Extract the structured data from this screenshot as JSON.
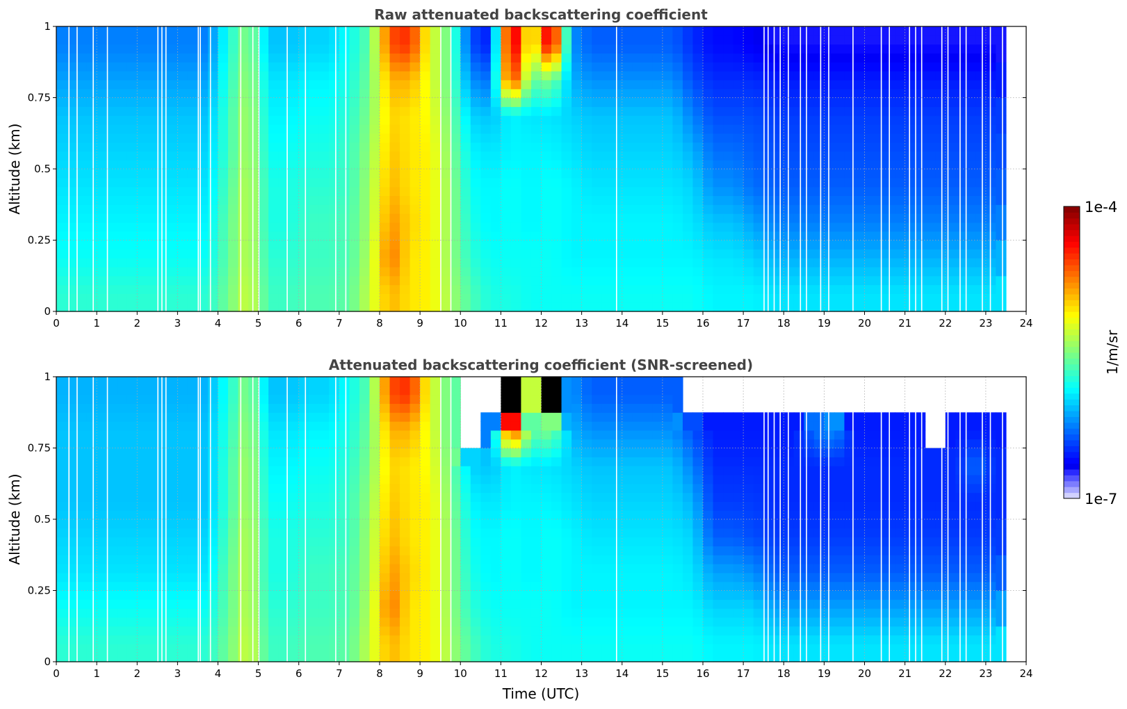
{
  "colorbar": {
    "label": "1/m/sr",
    "max_label": "1e-4",
    "min_label": "1e-7",
    "log10_range": [
      -7,
      -4
    ],
    "colormap": "jet",
    "over_color": "#000000",
    "missing_color": "#ffffff"
  },
  "shared": {
    "xlabel": "Time (UTC)",
    "ylabel": "Altitude (km)",
    "xticks": [
      "0",
      "1",
      "2",
      "3",
      "4",
      "5",
      "6",
      "7",
      "8",
      "9",
      "10",
      "11",
      "12",
      "13",
      "14",
      "15",
      "16",
      "17",
      "18",
      "19",
      "20",
      "21",
      "22",
      "23",
      "24"
    ],
    "yticks": [
      "0",
      "0.25",
      "0.5",
      "0.75",
      "1"
    ],
    "xlim": [
      0,
      24
    ],
    "ylim": [
      0,
      1
    ],
    "grid": true
  },
  "chart_data": [
    {
      "type": "heatmap",
      "title": "Raw attenuated backscattering coefficient",
      "xlabel": "",
      "ylabel": "Altitude (km)",
      "value_units": "log10(1/m/sr)",
      "time_bin_hours": 0.5,
      "altitude_bin_km": 0.125,
      "gaps_utc": [
        0.3,
        0.5,
        0.9,
        1.25,
        2.5,
        2.6,
        2.7,
        3.5,
        3.55,
        3.8,
        4.55,
        4.85,
        5.0,
        5.7,
        6.15,
        6.9,
        7.15,
        9.5,
        9.75,
        13.85,
        17.5,
        17.6,
        17.75,
        17.9,
        18.1,
        18.4,
        18.55,
        18.9,
        19.1,
        19.7,
        20.4,
        20.6,
        21.1,
        21.25,
        21.4,
        21.9,
        22.05,
        22.35,
        22.5,
        22.9,
        23.1,
        23.4
      ],
      "columns_bottom_to_top": [
        [
          -5.75,
          -5.85,
          -5.9,
          -5.95,
          -6.0,
          -6.05,
          -6.15,
          -6.25
        ],
        [
          -5.75,
          -5.85,
          -5.9,
          -5.95,
          -6.0,
          -6.05,
          -6.15,
          -6.25
        ],
        [
          -5.75,
          -5.85,
          -5.9,
          -5.95,
          -6.0,
          -6.05,
          -6.15,
          -6.25
        ],
        [
          -5.75,
          -5.85,
          -5.9,
          -5.95,
          -6.0,
          -6.05,
          -6.15,
          -6.25
        ],
        [
          -5.75,
          -5.85,
          -5.9,
          -5.95,
          -6.0,
          -6.05,
          -6.15,
          -6.25
        ],
        [
          -5.75,
          -5.85,
          -5.9,
          -5.95,
          -6.0,
          -6.05,
          -6.15,
          -6.25
        ],
        [
          -5.75,
          -5.85,
          -5.9,
          -5.95,
          -6.0,
          -6.05,
          -6.15,
          -6.25
        ],
        [
          -5.75,
          -5.85,
          -5.9,
          -5.95,
          -6.0,
          -6.05,
          -6.15,
          -6.25
        ],
        [
          -5.55,
          -5.6,
          -5.6,
          -5.65,
          -5.7,
          -5.7,
          -5.75,
          -5.8
        ],
        [
          -5.25,
          -5.3,
          -5.3,
          -5.3,
          -5.35,
          -5.35,
          -5.4,
          -5.45
        ],
        [
          -5.7,
          -5.75,
          -5.8,
          -5.8,
          -5.85,
          -5.9,
          -5.95,
          -6.05
        ],
        [
          -5.7,
          -5.75,
          -5.8,
          -5.8,
          -5.85,
          -5.9,
          -5.95,
          -6.05
        ],
        [
          -5.65,
          -5.7,
          -5.7,
          -5.75,
          -5.8,
          -5.85,
          -5.9,
          -6.0
        ],
        [
          -5.65,
          -5.7,
          -5.7,
          -5.75,
          -5.8,
          -5.85,
          -5.9,
          -6.0
        ],
        [
          -5.6,
          -5.65,
          -5.65,
          -5.7,
          -5.7,
          -5.75,
          -5.8,
          -5.85
        ],
        [
          -5.3,
          -5.35,
          -5.4,
          -5.4,
          -5.45,
          -5.5,
          -5.55,
          -5.6
        ],
        [
          -4.9,
          -4.7,
          -4.8,
          -4.9,
          -4.95,
          -5.0,
          -4.9,
          -4.6
        ],
        [
          -5.05,
          -5.05,
          -5.0,
          -5.05,
          -5.05,
          -5.05,
          -4.9,
          -4.5
        ],
        [
          -5.1,
          -5.1,
          -5.1,
          -5.1,
          -5.1,
          -5.15,
          -5.2,
          -5.2
        ],
        [
          -5.4,
          -5.45,
          -5.45,
          -5.45,
          -5.5,
          -5.55,
          -5.6,
          -5.6
        ],
        [
          -5.65,
          -5.75,
          -5.8,
          -5.85,
          -5.9,
          -6.0,
          -6.2,
          -6.4
        ],
        [
          -5.8,
          -5.85,
          -5.9,
          -5.9,
          -5.95,
          -6.05,
          -6.3,
          -6.55
        ],
        [
          -5.8,
          -5.85,
          -5.85,
          -5.85,
          -5.9,
          -5.9,
          -4.4,
          -4.1
        ],
        [
          -5.85,
          -5.85,
          -5.9,
          -5.9,
          -5.9,
          -5.95,
          -5.6,
          -5.3
        ],
        [
          -5.85,
          -5.85,
          -5.85,
          -5.85,
          -5.9,
          -5.95,
          -5.5,
          -4.15
        ],
        [
          -5.85,
          -5.9,
          -5.9,
          -5.9,
          -5.95,
          -6.0,
          -6.1,
          -6.2
        ],
        [
          -5.85,
          -5.9,
          -5.9,
          -5.95,
          -6.0,
          -6.05,
          -6.2,
          -6.35
        ],
        [
          -5.85,
          -5.9,
          -5.9,
          -5.95,
          -6.0,
          -6.05,
          -6.2,
          -6.35
        ],
        [
          -5.85,
          -5.9,
          -5.9,
          -5.95,
          -6.0,
          -6.05,
          -6.2,
          -6.35
        ],
        [
          -5.85,
          -5.9,
          -5.9,
          -5.95,
          -6.0,
          -6.05,
          -6.2,
          -6.35
        ],
        [
          -5.85,
          -5.9,
          -5.9,
          -5.95,
          -6.0,
          -6.05,
          -6.2,
          -6.35
        ],
        [
          -5.85,
          -5.9,
          -5.95,
          -6.0,
          -6.1,
          -6.25,
          -6.4,
          -6.5
        ],
        [
          -5.9,
          -5.95,
          -6.05,
          -6.2,
          -6.3,
          -6.4,
          -6.5,
          -6.6
        ],
        [
          -5.9,
          -5.95,
          -6.05,
          -6.2,
          -6.3,
          -6.4,
          -6.5,
          -6.6
        ],
        [
          -5.9,
          -6.0,
          -6.15,
          -6.3,
          -6.35,
          -6.4,
          -6.5,
          -6.65
        ],
        [
          -5.95,
          -6.1,
          -6.25,
          -6.35,
          -6.4,
          -6.45,
          -6.55,
          -6.7
        ],
        [
          -5.95,
          -6.1,
          -6.25,
          -6.35,
          -6.4,
          -6.45,
          -6.55,
          -6.7
        ],
        [
          -5.95,
          -6.1,
          -6.25,
          -6.35,
          -6.4,
          -6.45,
          -6.55,
          -6.7
        ],
        [
          -5.95,
          -6.1,
          -6.25,
          -6.35,
          -6.4,
          -6.45,
          -6.55,
          -6.7
        ],
        [
          -5.95,
          -6.1,
          -6.25,
          -6.35,
          -6.4,
          -6.45,
          -6.55,
          -6.7
        ],
        [
          -5.95,
          -6.1,
          -6.25,
          -6.35,
          -6.4,
          -6.45,
          -6.55,
          -6.7
        ],
        [
          -5.95,
          -6.1,
          -6.25,
          -6.35,
          -6.4,
          -6.45,
          -6.55,
          -6.7
        ],
        [
          -5.95,
          -6.1,
          -6.25,
          -6.35,
          -6.4,
          -6.45,
          -6.55,
          -6.7
        ],
        [
          -5.95,
          -6.1,
          -6.25,
          -6.35,
          -6.4,
          -6.45,
          -6.55,
          -6.7
        ],
        [
          -5.95,
          -6.1,
          -6.25,
          -6.35,
          -6.4,
          -6.45,
          -6.55,
          -6.7
        ],
        [
          -5.95,
          -6.1,
          -6.25,
          -6.35,
          -6.4,
          -6.45,
          -6.55,
          -6.7
        ],
        [
          -5.95,
          -6.1,
          -6.25,
          -6.35,
          -6.4,
          -6.45,
          -6.55,
          -6.7
        ],
        [
          null,
          null,
          null,
          null,
          null,
          null,
          null,
          null
        ]
      ]
    },
    {
      "type": "heatmap",
      "title": "Attenuated backscattering coefficient (SNR-screened)",
      "xlabel": "Time (UTC)",
      "ylabel": "Altitude (km)",
      "value_units": "log10(1/m/sr)",
      "time_bin_hours": 0.5,
      "altitude_bin_km": 0.125,
      "gaps_utc": [
        0.3,
        0.5,
        0.9,
        1.25,
        2.5,
        2.6,
        2.7,
        3.5,
        3.55,
        3.8,
        4.55,
        4.85,
        5.0,
        5.7,
        6.15,
        6.9,
        7.15,
        9.5,
        9.75,
        13.85,
        17.5,
        17.6,
        17.75,
        17.9,
        18.1,
        18.4,
        18.55,
        18.9,
        19.1,
        19.7,
        20.4,
        20.6,
        21.1,
        21.25,
        21.4,
        21.9,
        22.05,
        22.35,
        22.5,
        22.9,
        23.1,
        23.4
      ],
      "columns_bottom_to_top": [
        [
          -5.75,
          -5.85,
          -5.95,
          -6.0,
          -6.05,
          -6.05,
          -6.05,
          -6.1
        ],
        [
          -5.75,
          -5.85,
          -5.95,
          -6.0,
          -6.05,
          -6.05,
          -6.05,
          -6.1
        ],
        [
          -5.75,
          -5.85,
          -5.95,
          -6.0,
          -6.05,
          -6.05,
          -6.05,
          -6.1
        ],
        [
          -5.75,
          -5.85,
          -5.95,
          -6.0,
          -6.05,
          -6.05,
          -6.05,
          -6.1
        ],
        [
          -5.75,
          -5.85,
          -5.95,
          -6.0,
          -6.05,
          -6.05,
          -6.05,
          -6.1
        ],
        [
          -5.75,
          -5.85,
          -5.95,
          -6.0,
          -6.05,
          -6.05,
          -6.05,
          -6.1
        ],
        [
          -5.75,
          -5.85,
          -5.95,
          -6.0,
          -6.05,
          -6.05,
          -6.05,
          -6.1
        ],
        [
          -5.75,
          -5.85,
          -5.95,
          -6.0,
          -6.05,
          -6.05,
          -6.05,
          -6.1
        ],
        [
          -5.55,
          -5.6,
          -5.6,
          -5.65,
          -5.7,
          -5.7,
          -5.75,
          -5.8
        ],
        [
          -5.25,
          -5.3,
          -5.3,
          -5.3,
          -5.35,
          -5.35,
          -5.4,
          -5.45
        ],
        [
          -5.7,
          -5.75,
          -5.8,
          -5.8,
          -5.85,
          -5.9,
          -5.95,
          -6.05
        ],
        [
          -5.7,
          -5.75,
          -5.8,
          -5.8,
          -5.85,
          -5.9,
          -5.95,
          -6.05
        ],
        [
          -5.65,
          -5.7,
          -5.7,
          -5.75,
          -5.8,
          -5.85,
          -5.9,
          -6.0
        ],
        [
          -5.65,
          -5.7,
          -5.7,
          -5.75,
          -5.8,
          -5.85,
          -5.9,
          -6.0
        ],
        [
          -5.6,
          -5.65,
          -5.65,
          -5.7,
          -5.7,
          -5.75,
          -5.8,
          -5.85
        ],
        [
          -5.3,
          -5.35,
          -5.4,
          -5.4,
          -5.45,
          -5.5,
          -5.55,
          -5.6
        ],
        [
          -4.9,
          -4.7,
          -4.8,
          -4.9,
          -4.95,
          -5.0,
          -4.9,
          -4.6
        ],
        [
          -5.05,
          -5.05,
          -5.0,
          -5.05,
          -5.05,
          -5.05,
          -4.9,
          -4.5
        ],
        [
          -5.1,
          -5.1,
          -5.1,
          -5.1,
          -5.1,
          -5.15,
          -5.2,
          -5.2
        ],
        [
          -5.4,
          -5.45,
          -5.45,
          -5.45,
          -5.5,
          -5.55,
          -5.6,
          -5.6
        ],
        [
          -5.65,
          -5.75,
          -5.8,
          -5.85,
          -5.9,
          -6.0,
          null,
          null
        ],
        [
          -5.8,
          -5.85,
          -5.9,
          -5.9,
          -5.95,
          -6.05,
          -6.25,
          null
        ],
        [
          -5.8,
          -5.85,
          -5.85,
          -5.85,
          -5.9,
          -5.9,
          -4.4,
          -3.9
        ],
        [
          -5.85,
          -5.85,
          -5.9,
          -5.9,
          -5.9,
          -5.95,
          -5.6,
          -5.3
        ],
        [
          -5.85,
          -5.85,
          -5.85,
          -5.85,
          -5.9,
          -5.95,
          -5.5,
          -3.9
        ],
        [
          -5.85,
          -5.9,
          -5.9,
          -5.9,
          -5.95,
          -6.0,
          -6.1,
          -6.2
        ],
        [
          -5.85,
          -5.9,
          -5.9,
          -5.95,
          -6.0,
          -6.05,
          -6.2,
          -6.35
        ],
        [
          -5.85,
          -5.9,
          -5.9,
          -5.95,
          -6.0,
          -6.05,
          -6.2,
          -6.35
        ],
        [
          -5.85,
          -5.9,
          -5.9,
          -5.95,
          -6.0,
          -6.05,
          -6.2,
          -6.35
        ],
        [
          -5.85,
          -5.9,
          -5.9,
          -5.95,
          -6.0,
          -6.05,
          -6.2,
          -6.35
        ],
        [
          -5.85,
          -5.9,
          -5.9,
          -5.95,
          -6.0,
          -6.05,
          -6.2,
          -6.35
        ],
        [
          -5.85,
          -5.9,
          -5.95,
          -6.0,
          -6.1,
          -6.25,
          -6.4,
          null
        ],
        [
          -5.9,
          -6.0,
          -6.15,
          -6.35,
          -6.45,
          -6.5,
          -6.55,
          null
        ],
        [
          -5.9,
          -6.0,
          -6.15,
          -6.35,
          -6.45,
          -6.5,
          -6.55,
          null
        ],
        [
          -5.9,
          -6.0,
          -6.2,
          -6.4,
          -6.45,
          -6.5,
          -6.55,
          null
        ],
        [
          -5.95,
          -6.15,
          -6.35,
          -6.45,
          -6.5,
          -6.5,
          -6.55,
          null
        ],
        [
          -5.95,
          -6.15,
          -6.35,
          -6.45,
          -6.5,
          -6.5,
          -6.55,
          null
        ],
        [
          -5.95,
          -6.15,
          -6.35,
          -6.45,
          -6.5,
          -6.5,
          -6.3,
          null
        ],
        [
          -5.95,
          -6.15,
          -6.35,
          -6.45,
          -6.5,
          -6.5,
          -6.2,
          null
        ],
        [
          -5.95,
          -6.15,
          -6.35,
          -6.45,
          -6.5,
          -6.5,
          -6.55,
          null
        ],
        [
          -5.95,
          -6.15,
          -6.35,
          -6.45,
          -6.5,
          -6.5,
          -6.55,
          null
        ],
        [
          -5.95,
          -6.15,
          -6.35,
          -6.45,
          -6.5,
          -6.5,
          -6.55,
          null
        ],
        [
          -5.95,
          -6.15,
          -6.35,
          -6.45,
          -6.5,
          -6.5,
          -6.55,
          null
        ],
        [
          -5.95,
          -6.15,
          -6.35,
          -6.45,
          -6.5,
          -6.5,
          null,
          null
        ],
        [
          -5.95,
          -6.15,
          -6.35,
          -6.45,
          -6.5,
          -6.5,
          -6.55,
          null
        ],
        [
          -5.95,
          -6.15,
          -6.35,
          -6.45,
          -6.5,
          -6.3,
          -6.55,
          null
        ],
        [
          -5.95,
          -6.15,
          -6.35,
          -6.45,
          -6.5,
          -6.5,
          -6.55,
          null
        ],
        [
          null,
          null,
          null,
          null,
          null,
          null,
          null,
          null
        ]
      ]
    }
  ]
}
